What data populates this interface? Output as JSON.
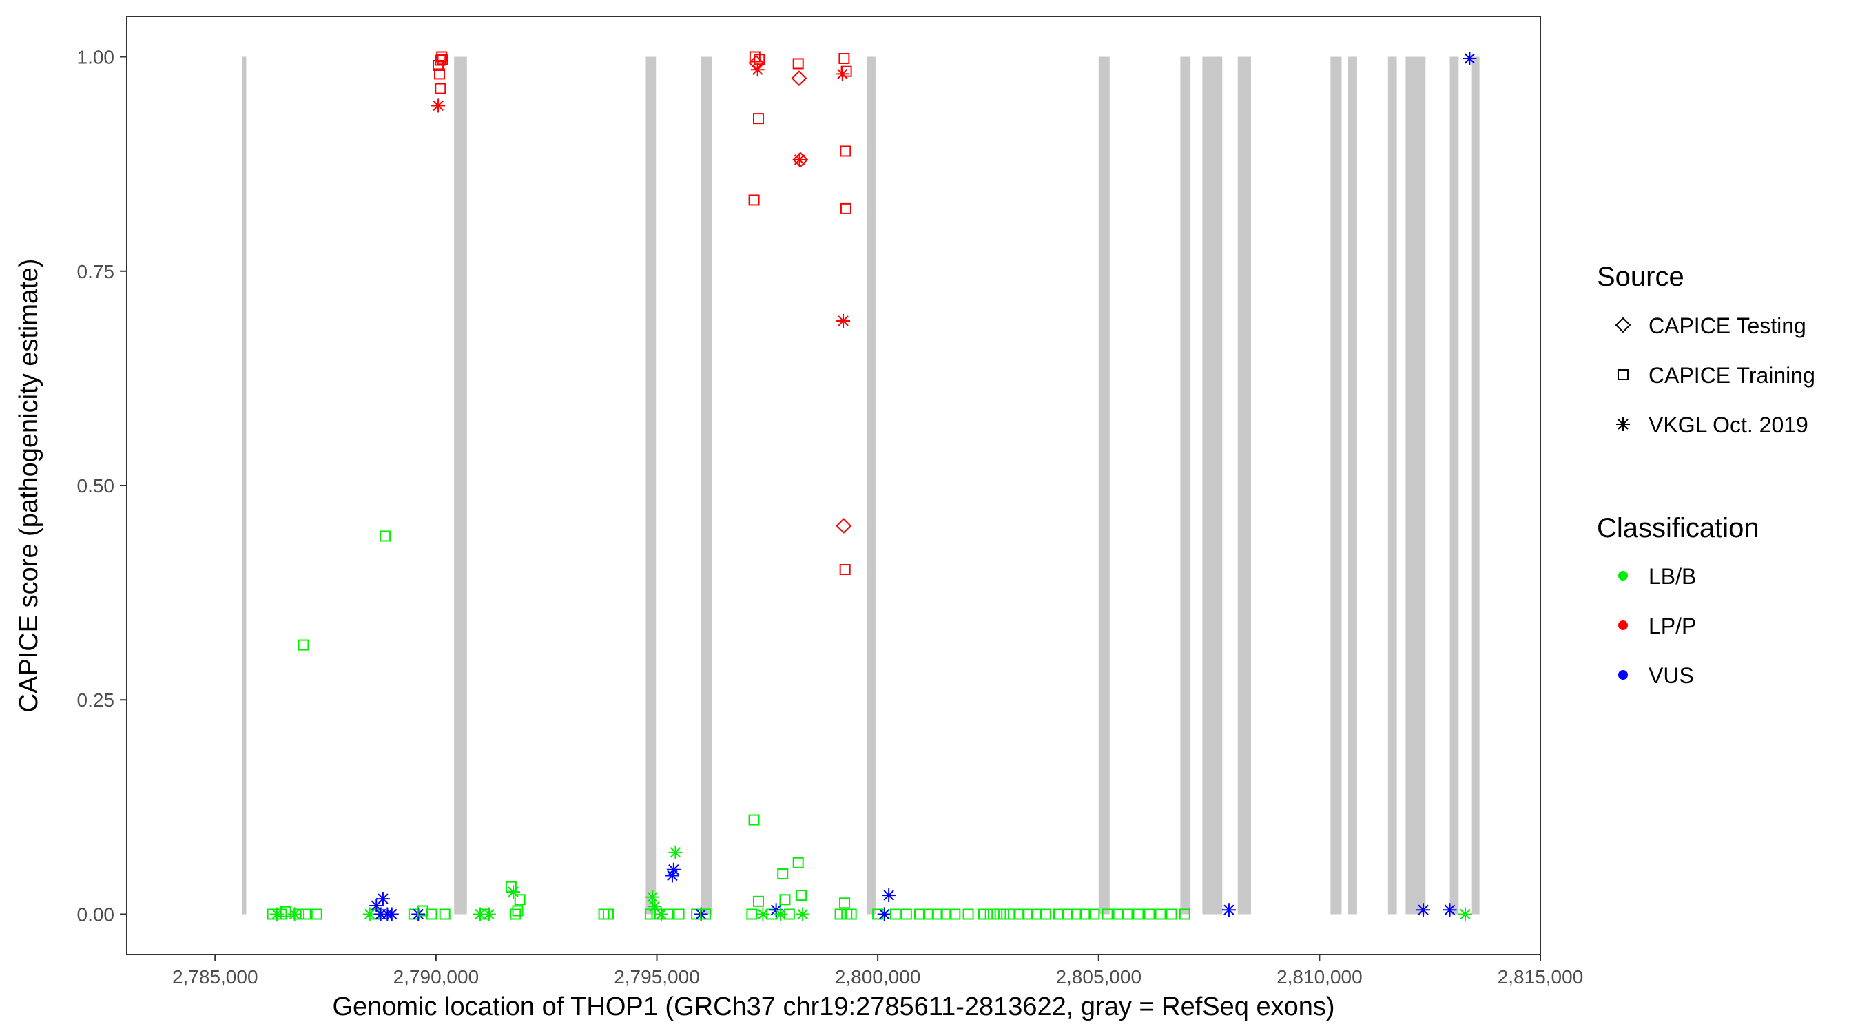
{
  "chart_data": {
    "type": "scatter",
    "title": "",
    "xlabel": "Genomic location of THOP1 (GRCh37 chr19:2785611-2813622, gray = RefSeq exons)",
    "ylabel": "CAPICE score (pathogenicity estimate)",
    "xlim": [
      2783000,
      2815000
    ],
    "ylim": [
      -0.047,
      1.047
    ],
    "x_ticks": [
      2785000,
      2790000,
      2795000,
      2800000,
      2805000,
      2810000,
      2815000
    ],
    "x_tick_labels": [
      "2,785,000",
      "2,790,000",
      "2,795,000",
      "2,800,000",
      "2,805,000",
      "2,810,000",
      "2,815,000"
    ],
    "y_ticks": [
      0,
      0.25,
      0.5,
      0.75,
      1.0
    ],
    "y_tick_labels": [
      "0.00",
      "0.25",
      "0.50",
      "0.75",
      "1.00"
    ],
    "grid": false,
    "exon_color": "#c8c8c8",
    "exons": [
      [
        2785611,
        2785700
      ],
      [
        2790410,
        2790700
      ],
      [
        2794750,
        2794980
      ],
      [
        2796000,
        2796250
      ],
      [
        2799750,
        2799950
      ],
      [
        2805000,
        2805250
      ],
      [
        2806850,
        2807080
      ],
      [
        2807350,
        2807800
      ],
      [
        2808150,
        2808450
      ],
      [
        2810250,
        2810500
      ],
      [
        2810650,
        2810850
      ],
      [
        2811550,
        2811750
      ],
      [
        2811950,
        2812400
      ],
      [
        2812950,
        2813150
      ],
      [
        2813450,
        2813622
      ]
    ],
    "legend": {
      "position": "right",
      "source_title": "Source",
      "source_items": [
        {
          "label": "CAPICE Testing",
          "shape": "diamond"
        },
        {
          "label": "CAPICE Training",
          "shape": "square"
        },
        {
          "label": "VKGL Oct. 2019",
          "shape": "asterisk"
        }
      ],
      "class_title": "Classification",
      "class_items": [
        {
          "label": "LB/B",
          "color": "#00ee00"
        },
        {
          "label": "LP/P",
          "color": "#ff0000"
        },
        {
          "label": "VUS",
          "color": "#0000ff"
        }
      ]
    },
    "points": [
      {
        "x": 2786300,
        "y": 0.0,
        "shape": "square",
        "cls": "LB/B"
      },
      {
        "x": 2786400,
        "y": 0.0,
        "shape": "asterisk",
        "cls": "LB/B"
      },
      {
        "x": 2786500,
        "y": 0.0,
        "shape": "square",
        "cls": "LB/B"
      },
      {
        "x": 2786600,
        "y": 0.003,
        "shape": "square",
        "cls": "LB/B"
      },
      {
        "x": 2786800,
        "y": 0.0,
        "shape": "asterisk",
        "cls": "LB/B"
      },
      {
        "x": 2786900,
        "y": 0.0,
        "shape": "square",
        "cls": "LB/B"
      },
      {
        "x": 2787000,
        "y": 0.314,
        "shape": "square",
        "cls": "LB/B"
      },
      {
        "x": 2787050,
        "y": 0.0,
        "shape": "square",
        "cls": "LB/B"
      },
      {
        "x": 2787300,
        "y": 0.0,
        "shape": "square",
        "cls": "LB/B"
      },
      {
        "x": 2788500,
        "y": 0.0,
        "shape": "asterisk",
        "cls": "LB/B"
      },
      {
        "x": 2788600,
        "y": 0.0,
        "shape": "square",
        "cls": "LB/B"
      },
      {
        "x": 2788650,
        "y": 0.01,
        "shape": "asterisk",
        "cls": "VUS"
      },
      {
        "x": 2788750,
        "y": 0.0,
        "shape": "asterisk",
        "cls": "VUS"
      },
      {
        "x": 2788800,
        "y": 0.018,
        "shape": "asterisk",
        "cls": "VUS"
      },
      {
        "x": 2788850,
        "y": 0.441,
        "shape": "square",
        "cls": "LB/B"
      },
      {
        "x": 2788900,
        "y": 0.0,
        "shape": "asterisk",
        "cls": "VUS"
      },
      {
        "x": 2789000,
        "y": 0.0,
        "shape": "asterisk",
        "cls": "VUS"
      },
      {
        "x": 2789500,
        "y": 0.0,
        "shape": "square",
        "cls": "LB/B"
      },
      {
        "x": 2789600,
        "y": 0.0,
        "shape": "asterisk",
        "cls": "VUS"
      },
      {
        "x": 2789700,
        "y": 0.004,
        "shape": "square",
        "cls": "LB/B"
      },
      {
        "x": 2789900,
        "y": 0.0,
        "shape": "square",
        "cls": "LB/B"
      },
      {
        "x": 2790050,
        "y": 0.943,
        "shape": "asterisk",
        "cls": "LP/P"
      },
      {
        "x": 2790050,
        "y": 0.99,
        "shape": "square",
        "cls": "LP/P"
      },
      {
        "x": 2790080,
        "y": 0.98,
        "shape": "square",
        "cls": "LP/P"
      },
      {
        "x": 2790100,
        "y": 0.963,
        "shape": "square",
        "cls": "LP/P"
      },
      {
        "x": 2790100,
        "y": 0.996,
        "shape": "square",
        "cls": "LP/P"
      },
      {
        "x": 2790130,
        "y": 1.0,
        "shape": "square",
        "cls": "LP/P"
      },
      {
        "x": 2790150,
        "y": 0.997,
        "shape": "square",
        "cls": "LP/P"
      },
      {
        "x": 2790200,
        "y": 0.0,
        "shape": "square",
        "cls": "LB/B"
      },
      {
        "x": 2791000,
        "y": 0.0,
        "shape": "asterisk",
        "cls": "LB/B"
      },
      {
        "x": 2791100,
        "y": 0.0,
        "shape": "square",
        "cls": "LB/B"
      },
      {
        "x": 2791200,
        "y": 0.0,
        "shape": "asterisk",
        "cls": "LB/B"
      },
      {
        "x": 2791700,
        "y": 0.032,
        "shape": "square",
        "cls": "LB/B"
      },
      {
        "x": 2791750,
        "y": 0.026,
        "shape": "asterisk",
        "cls": "LB/B"
      },
      {
        "x": 2791800,
        "y": 0.0,
        "shape": "square",
        "cls": "LB/B"
      },
      {
        "x": 2791900,
        "y": 0.017,
        "shape": "square",
        "cls": "LB/B"
      },
      {
        "x": 2791850,
        "y": 0.004,
        "shape": "square",
        "cls": "LB/B"
      },
      {
        "x": 2793800,
        "y": 0.0,
        "shape": "square",
        "cls": "LB/B"
      },
      {
        "x": 2793900,
        "y": 0.0,
        "shape": "square",
        "cls": "LB/B"
      },
      {
        "x": 2794850,
        "y": 0.0,
        "shape": "square",
        "cls": "LB/B"
      },
      {
        "x": 2794900,
        "y": 0.02,
        "shape": "asterisk",
        "cls": "LB/B"
      },
      {
        "x": 2794950,
        "y": 0.009,
        "shape": "asterisk",
        "cls": "LB/B"
      },
      {
        "x": 2795000,
        "y": 0.0,
        "shape": "square",
        "cls": "LB/B"
      },
      {
        "x": 2795100,
        "y": 0.0,
        "shape": "asterisk",
        "cls": "LB/B"
      },
      {
        "x": 2795250,
        "y": 0.0,
        "shape": "square",
        "cls": "LB/B"
      },
      {
        "x": 2795350,
        "y": 0.045,
        "shape": "asterisk",
        "cls": "VUS"
      },
      {
        "x": 2795380,
        "y": 0.052,
        "shape": "asterisk",
        "cls": "VUS"
      },
      {
        "x": 2795420,
        "y": 0.072,
        "shape": "asterisk",
        "cls": "LB/B"
      },
      {
        "x": 2795500,
        "y": 0.0,
        "shape": "square",
        "cls": "LB/B"
      },
      {
        "x": 2795900,
        "y": 0.0,
        "shape": "square",
        "cls": "LB/B"
      },
      {
        "x": 2796000,
        "y": 0.0,
        "shape": "asterisk",
        "cls": "VUS"
      },
      {
        "x": 2796100,
        "y": 0.0,
        "shape": "square",
        "cls": "LB/B"
      },
      {
        "x": 2797150,
        "y": 0.0,
        "shape": "square",
        "cls": "LB/B"
      },
      {
        "x": 2797200,
        "y": 0.11,
        "shape": "square",
        "cls": "LB/B"
      },
      {
        "x": 2797200,
        "y": 0.833,
        "shape": "square",
        "cls": "LP/P"
      },
      {
        "x": 2797220,
        "y": 1.0,
        "shape": "square",
        "cls": "LP/P"
      },
      {
        "x": 2797250,
        "y": 0.993,
        "shape": "diamond",
        "cls": "LP/P"
      },
      {
        "x": 2797280,
        "y": 0.985,
        "shape": "asterisk",
        "cls": "LP/P"
      },
      {
        "x": 2797300,
        "y": 0.928,
        "shape": "square",
        "cls": "LP/P"
      },
      {
        "x": 2797300,
        "y": 0.015,
        "shape": "square",
        "cls": "LB/B"
      },
      {
        "x": 2797320,
        "y": 0.997,
        "shape": "square",
        "cls": "LP/P"
      },
      {
        "x": 2797400,
        "y": 0.0,
        "shape": "asterisk",
        "cls": "LB/B"
      },
      {
        "x": 2797600,
        "y": 0.0,
        "shape": "square",
        "cls": "LB/B"
      },
      {
        "x": 2797700,
        "y": 0.005,
        "shape": "asterisk",
        "cls": "VUS"
      },
      {
        "x": 2797800,
        "y": 0.0,
        "shape": "asterisk",
        "cls": "LB/B"
      },
      {
        "x": 2797850,
        "y": 0.047,
        "shape": "square",
        "cls": "LB/B"
      },
      {
        "x": 2797900,
        "y": 0.017,
        "shape": "square",
        "cls": "LB/B"
      },
      {
        "x": 2798000,
        "y": 0.0,
        "shape": "square",
        "cls": "LB/B"
      },
      {
        "x": 2798200,
        "y": 0.06,
        "shape": "square",
        "cls": "LB/B"
      },
      {
        "x": 2798200,
        "y": 0.992,
        "shape": "square",
        "cls": "LP/P"
      },
      {
        "x": 2798220,
        "y": 0.975,
        "shape": "diamond",
        "cls": "LP/P"
      },
      {
        "x": 2798230,
        "y": 0.88,
        "shape": "asterisk",
        "cls": "LP/P"
      },
      {
        "x": 2798250,
        "y": 0.88,
        "shape": "diamond",
        "cls": "LP/P"
      },
      {
        "x": 2798270,
        "y": 0.022,
        "shape": "square",
        "cls": "LB/B"
      },
      {
        "x": 2798300,
        "y": 0.0,
        "shape": "asterisk",
        "cls": "LB/B"
      },
      {
        "x": 2799150,
        "y": 0.0,
        "shape": "square",
        "cls": "LB/B"
      },
      {
        "x": 2799200,
        "y": 0.98,
        "shape": "asterisk",
        "cls": "LP/P"
      },
      {
        "x": 2799220,
        "y": 0.692,
        "shape": "asterisk",
        "cls": "LP/P"
      },
      {
        "x": 2799230,
        "y": 0.453,
        "shape": "diamond",
        "cls": "LP/P"
      },
      {
        "x": 2799240,
        "y": 0.998,
        "shape": "square",
        "cls": "LP/P"
      },
      {
        "x": 2799250,
        "y": 0.013,
        "shape": "square",
        "cls": "LB/B"
      },
      {
        "x": 2799260,
        "y": 0.402,
        "shape": "square",
        "cls": "LP/P"
      },
      {
        "x": 2799270,
        "y": 0.89,
        "shape": "square",
        "cls": "LP/P"
      },
      {
        "x": 2799280,
        "y": 0.823,
        "shape": "square",
        "cls": "LP/P"
      },
      {
        "x": 2799290,
        "y": 0.983,
        "shape": "square",
        "cls": "LP/P"
      },
      {
        "x": 2799300,
        "y": 0.0,
        "shape": "square",
        "cls": "LB/B"
      },
      {
        "x": 2799400,
        "y": 0.0,
        "shape": "square",
        "cls": "LB/B"
      },
      {
        "x": 2800000,
        "y": 0.0,
        "shape": "square",
        "cls": "LB/B"
      },
      {
        "x": 2800150,
        "y": 0.0,
        "shape": "asterisk",
        "cls": "VUS"
      },
      {
        "x": 2800250,
        "y": 0.022,
        "shape": "asterisk",
        "cls": "VUS"
      },
      {
        "x": 2800400,
        "y": 0.0,
        "shape": "square",
        "cls": "LB/B"
      },
      {
        "x": 2800650,
        "y": 0.0,
        "shape": "square",
        "cls": "LB/B"
      },
      {
        "x": 2800950,
        "y": 0.0,
        "shape": "square",
        "cls": "LB/B"
      },
      {
        "x": 2801150,
        "y": 0.0,
        "shape": "square",
        "cls": "LB/B"
      },
      {
        "x": 2801350,
        "y": 0.0,
        "shape": "square",
        "cls": "LB/B"
      },
      {
        "x": 2801550,
        "y": 0.0,
        "shape": "square",
        "cls": "LB/B"
      },
      {
        "x": 2801750,
        "y": 0.0,
        "shape": "square",
        "cls": "LB/B"
      },
      {
        "x": 2802050,
        "y": 0.0,
        "shape": "square",
        "cls": "LB/B"
      },
      {
        "x": 2802400,
        "y": 0.0,
        "shape": "square",
        "cls": "LB/B"
      },
      {
        "x": 2802550,
        "y": 0.0,
        "shape": "square",
        "cls": "LB/B"
      },
      {
        "x": 2802700,
        "y": 0.0,
        "shape": "square",
        "cls": "LB/B"
      },
      {
        "x": 2802850,
        "y": 0.0,
        "shape": "square",
        "cls": "LB/B"
      },
      {
        "x": 2803000,
        "y": 0.0,
        "shape": "square",
        "cls": "LB/B"
      },
      {
        "x": 2803200,
        "y": 0.0,
        "shape": "square",
        "cls": "LB/B"
      },
      {
        "x": 2803400,
        "y": 0.0,
        "shape": "square",
        "cls": "LB/B"
      },
      {
        "x": 2803600,
        "y": 0.0,
        "shape": "square",
        "cls": "LB/B"
      },
      {
        "x": 2803800,
        "y": 0.0,
        "shape": "square",
        "cls": "LB/B"
      },
      {
        "x": 2804100,
        "y": 0.0,
        "shape": "square",
        "cls": "LB/B"
      },
      {
        "x": 2804300,
        "y": 0.0,
        "shape": "square",
        "cls": "LB/B"
      },
      {
        "x": 2804500,
        "y": 0.0,
        "shape": "square",
        "cls": "LB/B"
      },
      {
        "x": 2804700,
        "y": 0.0,
        "shape": "square",
        "cls": "LB/B"
      },
      {
        "x": 2804900,
        "y": 0.0,
        "shape": "square",
        "cls": "LB/B"
      },
      {
        "x": 2805200,
        "y": 0.0,
        "shape": "square",
        "cls": "LB/B"
      },
      {
        "x": 2805450,
        "y": 0.0,
        "shape": "square",
        "cls": "LB/B"
      },
      {
        "x": 2805650,
        "y": 0.0,
        "shape": "square",
        "cls": "LB/B"
      },
      {
        "x": 2805900,
        "y": 0.0,
        "shape": "square",
        "cls": "LB/B"
      },
      {
        "x": 2806150,
        "y": 0.0,
        "shape": "square",
        "cls": "LB/B"
      },
      {
        "x": 2806400,
        "y": 0.0,
        "shape": "square",
        "cls": "LB/B"
      },
      {
        "x": 2806650,
        "y": 0.0,
        "shape": "square",
        "cls": "LB/B"
      },
      {
        "x": 2806950,
        "y": 0.0,
        "shape": "square",
        "cls": "LB/B"
      },
      {
        "x": 2807950,
        "y": 0.005,
        "shape": "asterisk",
        "cls": "VUS"
      },
      {
        "x": 2812350,
        "y": 0.005,
        "shape": "asterisk",
        "cls": "VUS"
      },
      {
        "x": 2812950,
        "y": 0.005,
        "shape": "asterisk",
        "cls": "VUS"
      },
      {
        "x": 2813300,
        "y": 0.0,
        "shape": "asterisk",
        "cls": "LB/B"
      },
      {
        "x": 2813400,
        "y": 0.998,
        "shape": "asterisk",
        "cls": "VUS"
      }
    ]
  }
}
